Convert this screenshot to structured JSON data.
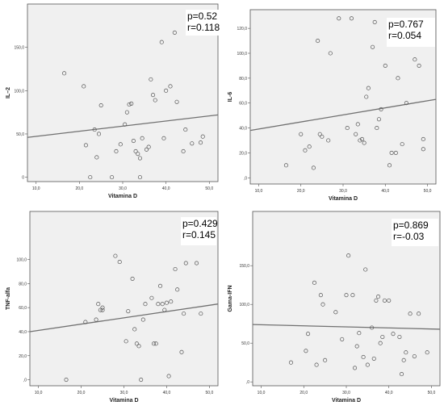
{
  "chart_data": [
    {
      "type": "scatter",
      "xlabel": "Vitamina D",
      "ylabel": "IL–2",
      "xlim": [
        8,
        52
      ],
      "ylim": [
        -5,
        200
      ],
      "xticks": [
        "10,0",
        "20,0",
        "30,0",
        "40,0",
        "50,0"
      ],
      "yticks": [
        "0",
        "50,0",
        "100,0",
        "150,0"
      ],
      "ytick_values": [
        0,
        50,
        100,
        150
      ],
      "annotation": [
        "p=0.52",
        "r=0.118"
      ],
      "fit_line": [
        [
          8,
          46
        ],
        [
          52,
          72
        ]
      ],
      "points": [
        [
          16.5,
          120
        ],
        [
          21,
          105
        ],
        [
          21.5,
          37
        ],
        [
          22.5,
          0
        ],
        [
          23.5,
          55
        ],
        [
          24,
          23
        ],
        [
          24.5,
          50
        ],
        [
          25,
          83
        ],
        [
          27.5,
          0
        ],
        [
          28.5,
          30
        ],
        [
          29.5,
          38
        ],
        [
          30.5,
          61
        ],
        [
          31,
          75
        ],
        [
          31.5,
          84
        ],
        [
          32,
          85
        ],
        [
          32.5,
          42
        ],
        [
          33,
          30
        ],
        [
          33.5,
          27
        ],
        [
          34,
          22
        ],
        [
          34,
          0
        ],
        [
          34.5,
          45
        ],
        [
          35.5,
          32
        ],
        [
          36,
          35
        ],
        [
          36.5,
          113
        ],
        [
          37,
          95
        ],
        [
          37.5,
          89
        ],
        [
          39,
          156
        ],
        [
          39.5,
          45
        ],
        [
          40,
          100
        ],
        [
          41,
          105
        ],
        [
          42,
          167
        ],
        [
          42.5,
          87
        ],
        [
          44,
          30
        ],
        [
          44.5,
          55
        ],
        [
          46,
          39
        ],
        [
          48,
          40
        ],
        [
          48.5,
          47
        ]
      ]
    },
    {
      "type": "scatter",
      "xlabel": "Vitamina D",
      "ylabel": "IL-6",
      "xlim": [
        8,
        52
      ],
      "ylim": [
        -5,
        135
      ],
      "xticks": [
        "10,0",
        "20,0",
        "30,0",
        "40,0",
        "50,0"
      ],
      "yticks": [
        ",0",
        "20,0",
        "40,0",
        "60,0",
        "80,0",
        "100,0",
        "120,0"
      ],
      "ytick_values": [
        0,
        20,
        40,
        60,
        80,
        100,
        120
      ],
      "annotation": [
        "p=0.767",
        "r=0.054"
      ],
      "fit_line": [
        [
          8,
          38
        ],
        [
          52,
          63
        ]
      ],
      "points": [
        [
          16.5,
          10
        ],
        [
          20,
          35
        ],
        [
          21,
          22
        ],
        [
          22,
          25
        ],
        [
          23,
          8
        ],
        [
          24,
          110
        ],
        [
          24.5,
          35
        ],
        [
          25,
          33
        ],
        [
          26.5,
          30
        ],
        [
          27,
          100
        ],
        [
          29,
          128
        ],
        [
          31,
          40
        ],
        [
          32,
          128
        ],
        [
          33,
          35
        ],
        [
          33.5,
          43
        ],
        [
          34,
          30
        ],
        [
          34.5,
          31
        ],
        [
          35,
          28
        ],
        [
          35.5,
          65
        ],
        [
          36,
          72
        ],
        [
          37,
          105
        ],
        [
          37.5,
          125
        ],
        [
          38,
          40
        ],
        [
          38.5,
          47
        ],
        [
          39,
          55
        ],
        [
          40,
          90
        ],
        [
          41,
          10
        ],
        [
          41.5,
          20
        ],
        [
          42.5,
          20
        ],
        [
          43,
          80
        ],
        [
          44,
          27
        ],
        [
          45,
          60
        ],
        [
          47,
          95
        ],
        [
          48,
          90
        ],
        [
          49,
          31
        ],
        [
          49,
          23
        ]
      ]
    },
    {
      "type": "scatter",
      "xlabel": "Vitamina D",
      "ylabel": "TNF-alfa",
      "xlim": [
        8,
        52
      ],
      "ylim": [
        -5,
        140
      ],
      "xticks": [
        "10,0",
        "20,0",
        "30,0",
        "40,0",
        "50,0"
      ],
      "yticks": [
        ",0",
        "20,0",
        "40,0",
        "60,0",
        "80,0",
        "100,0"
      ],
      "ytick_values": [
        0,
        20,
        40,
        60,
        80,
        100
      ],
      "annotation": [
        "p=0.429",
        "r=0.145"
      ],
      "fit_line": [
        [
          8,
          40
        ],
        [
          52,
          63
        ]
      ],
      "points": [
        [
          16.5,
          0
        ],
        [
          21,
          48
        ],
        [
          23.5,
          50
        ],
        [
          24,
          63
        ],
        [
          24.5,
          58
        ],
        [
          25,
          60
        ],
        [
          25,
          58
        ],
        [
          28,
          103
        ],
        [
          29,
          98
        ],
        [
          30.5,
          32
        ],
        [
          31,
          57
        ],
        [
          32,
          84
        ],
        [
          32.5,
          42
        ],
        [
          33,
          30
        ],
        [
          33.5,
          28
        ],
        [
          34,
          0
        ],
        [
          34.5,
          50
        ],
        [
          35,
          63
        ],
        [
          36.5,
          68
        ],
        [
          37,
          30
        ],
        [
          37.5,
          30
        ],
        [
          38,
          63
        ],
        [
          38.5,
          78
        ],
        [
          39,
          63
        ],
        [
          39.5,
          58
        ],
        [
          40,
          64
        ],
        [
          40.5,
          3
        ],
        [
          41,
          65
        ],
        [
          42,
          92
        ],
        [
          42.5,
          75
        ],
        [
          43.5,
          23
        ],
        [
          44,
          55
        ],
        [
          44.5,
          97
        ],
        [
          47,
          97
        ],
        [
          48,
          55
        ]
      ]
    },
    {
      "type": "scatter",
      "xlabel": "Vitamina D",
      "ylabel": "Gama-IFN",
      "xlim": [
        8,
        52
      ],
      "ylim": [
        -5,
        220
      ],
      "xticks": [
        "10,0",
        "20,0",
        "30,0",
        "40,0",
        "50,0"
      ],
      "yticks": [
        ",0",
        "50,0",
        "100,0",
        "150,0"
      ],
      "ytick_values": [
        0,
        50,
        100,
        150
      ],
      "annotation": [
        "p=0.869",
        "r=-0.03"
      ],
      "fit_line": [
        [
          8,
          74
        ],
        [
          52,
          68
        ]
      ],
      "points": [
        [
          17,
          25
        ],
        [
          20.5,
          40
        ],
        [
          21,
          62
        ],
        [
          22.5,
          128
        ],
        [
          23,
          22
        ],
        [
          24,
          112
        ],
        [
          24.5,
          100
        ],
        [
          25,
          28
        ],
        [
          27.5,
          90
        ],
        [
          29,
          55
        ],
        [
          30,
          112
        ],
        [
          30.5,
          163
        ],
        [
          31.5,
          112
        ],
        [
          32,
          18
        ],
        [
          32.5,
          46
        ],
        [
          33,
          63
        ],
        [
          34,
          32
        ],
        [
          34.5,
          145
        ],
        [
          35,
          22
        ],
        [
          36,
          70
        ],
        [
          36.5,
          30
        ],
        [
          37,
          105
        ],
        [
          37.5,
          110
        ],
        [
          38,
          50
        ],
        [
          38.5,
          58
        ],
        [
          39,
          105
        ],
        [
          40,
          105
        ],
        [
          41,
          62
        ],
        [
          42.5,
          58
        ],
        [
          43,
          10
        ],
        [
          43.5,
          28
        ],
        [
          44,
          38
        ],
        [
          45,
          88
        ],
        [
          46,
          33
        ],
        [
          47,
          88
        ],
        [
          49,
          38
        ]
      ]
    }
  ]
}
